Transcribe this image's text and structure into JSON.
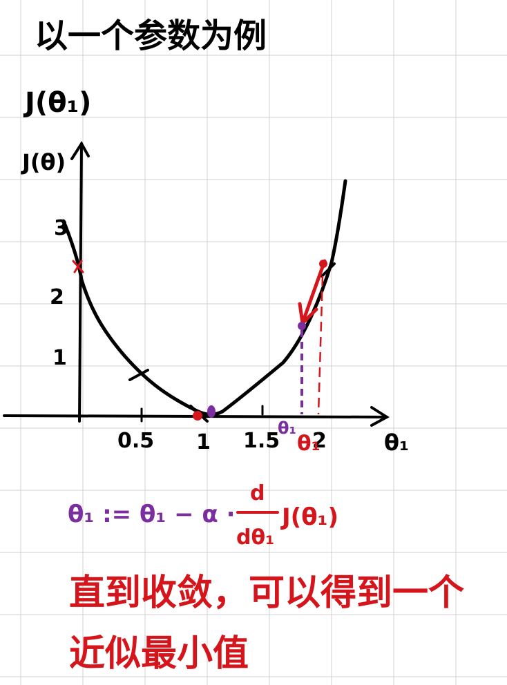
{
  "colors": {
    "ink": "#000000",
    "red": "#d4161c",
    "purple": "#7b2f9e",
    "grid": "#d0d0d0"
  },
  "heading": "以一个参数为例",
  "function_label": "J(θ₁)",
  "y_axis_label": "J(θ)",
  "x_axis_label": "θ₁",
  "y_ticks": [
    "3",
    "2",
    "1"
  ],
  "x_ticks": [
    "0.5",
    "1",
    "1.5",
    "2"
  ],
  "point_labels": {
    "purple": "θ₁",
    "red": "θ₁"
  },
  "formula": {
    "lhs": "θ₁ := θ₁ − α ·",
    "frac_num": "d",
    "frac_den": "dθ₁",
    "rhs": "J(θ₁)"
  },
  "note_line1": "直到收敛，可以得到一个",
  "note_line2": "近似最小值",
  "curve_data": {
    "x": [
      0,
      0.5,
      1,
      1.5,
      1.8,
      2.0,
      2.2
    ],
    "y": [
      2.5,
      0.7,
      0,
      0.65,
      1.5,
      2.4,
      3.3
    ]
  }
}
